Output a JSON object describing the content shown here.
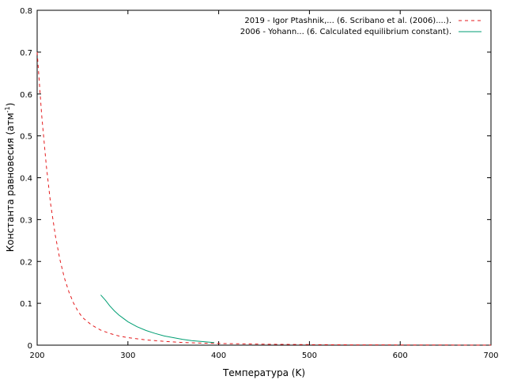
{
  "chart_data": {
    "type": "line",
    "title": "",
    "xlabel": "Температура (K)",
    "ylabel_main": "Константа равновесия (атм",
    "ylabel_sup": "-1",
    "ylabel_tail": ")",
    "xlim": [
      200,
      700
    ],
    "ylim": [
      0,
      0.8
    ],
    "xticks": [
      200,
      300,
      400,
      500,
      600,
      700
    ],
    "xtick_labels": [
      "200",
      "300",
      "400",
      "500",
      "600",
      "700"
    ],
    "yticks": [
      0,
      0.1,
      0.2,
      0.3,
      0.4,
      0.5,
      0.6,
      0.7,
      0.8
    ],
    "ytick_labels": [
      "0",
      "0.1",
      "0.2",
      "0.3",
      "0.4",
      "0.5",
      "0.6",
      "0.7",
      "0.8"
    ],
    "grid": false,
    "legend_position": "top-right",
    "series": [
      {
        "name": "2019 - Igor Ptashnik,... (6. Scribano et al. (2006)....).",
        "color": "#e41a1c",
        "style": "dashed",
        "x": [
          200,
          205,
          210,
          215,
          220,
          225,
          230,
          235,
          240,
          245,
          250,
          260,
          270,
          280,
          290,
          300,
          320,
          340,
          360,
          380,
          400,
          450,
          500,
          550,
          600,
          650,
          700
        ],
        "y": [
          0.7,
          0.55,
          0.43,
          0.335,
          0.262,
          0.205,
          0.161,
          0.127,
          0.101,
          0.081,
          0.066,
          0.048,
          0.036,
          0.028,
          0.022,
          0.018,
          0.0125,
          0.009,
          0.0065,
          0.005,
          0.004,
          0.0022,
          0.0013,
          0.0008,
          0.0005,
          0.0003,
          0.0002
        ]
      },
      {
        "name": "2006 - Yohann... (6. Calculated equilibrium constant).",
        "color": "#009e73",
        "style": "solid",
        "x": [
          270,
          275,
          280,
          285,
          290,
          295,
          300,
          310,
          320,
          330,
          340,
          350,
          360,
          370,
          380,
          390,
          395
        ],
        "y": [
          0.12,
          0.108,
          0.094,
          0.082,
          0.072,
          0.064,
          0.056,
          0.044,
          0.035,
          0.028,
          0.022,
          0.018,
          0.014,
          0.011,
          0.009,
          0.007,
          0.006
        ]
      }
    ]
  }
}
